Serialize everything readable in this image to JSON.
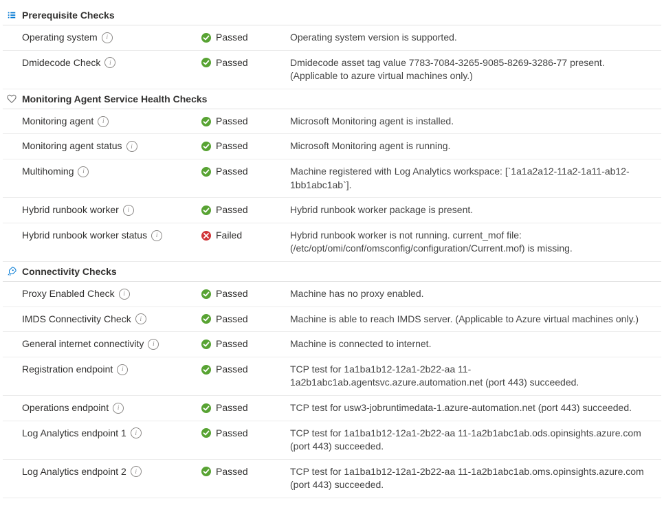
{
  "colors": {
    "pass": "#58a333",
    "fail": "#d13438",
    "section_icon": "#0078d4",
    "border": "#e1e1e1",
    "text": "#323130"
  },
  "status_labels": {
    "passed": "Passed",
    "failed": "Failed"
  },
  "sections": [
    {
      "icon": "list",
      "title": "Prerequisite Checks",
      "rows": [
        {
          "name": "Operating system",
          "status": "passed",
          "desc": "Operating system version is supported."
        },
        {
          "name": "Dmidecode Check",
          "status": "passed",
          "desc": "Dmidecode asset tag value 7783-7084-3265-9085-8269-3286-77 present. (Applicable to azure virtual machines only.)"
        }
      ]
    },
    {
      "icon": "heart",
      "title": "Monitoring Agent Service Health Checks",
      "rows": [
        {
          "name": "Monitoring agent",
          "status": "passed",
          "desc": "Microsoft Monitoring agent is installed."
        },
        {
          "name": "Monitoring agent status",
          "status": "passed",
          "desc": "Microsoft Monitoring agent is running."
        },
        {
          "name": "Multihoming",
          "status": "passed",
          "desc": "Machine registered with Log Analytics workspace: [`1a1a2a12-11a2-1a11-ab12-1bb1abc1ab`]."
        },
        {
          "name": "Hybrid runbook worker",
          "status": "passed",
          "desc": "Hybrid runbook worker package is present."
        },
        {
          "name": "Hybrid runbook worker status",
          "status": "failed",
          "desc": "Hybrid runbook worker is not running. current_mof file: (/etc/opt/omi/conf/omsconfig/configuration/Current.mof) is missing."
        }
      ]
    },
    {
      "icon": "rocket",
      "title": "Connectivity Checks",
      "rows": [
        {
          "name": "Proxy Enabled Check",
          "status": "passed",
          "desc": "Machine has no proxy enabled."
        },
        {
          "name": "IMDS Connectivity Check",
          "status": "passed",
          "desc": "Machine is able to reach IMDS server. (Applicable to Azure virtual machines only.)"
        },
        {
          "name": "General internet connectivity",
          "status": "passed",
          "desc": "Machine is connected to internet."
        },
        {
          "name": "Registration endpoint",
          "status": "passed",
          "desc": "TCP test for 1a1ba1b12-12a1-2b22-aa 11-1a2b1abc1ab.agentsvc.azure.automation.net (port 443) succeeded."
        },
        {
          "name": "Operations endpoint",
          "status": "passed",
          "desc": "TCP test for usw3-jobruntimedata-1.azure-automation.net (port 443) succeeded."
        },
        {
          "name": "Log Analytics endpoint 1",
          "status": "passed",
          "desc": "TCP test for 1a1ba1b12-12a1-2b22-aa 11-1a2b1abc1ab.ods.opinsights.azure.com (port 443) succeeded."
        },
        {
          "name": "Log Analytics endpoint 2",
          "status": "passed",
          "desc": "TCP test for 1a1ba1b12-12a1-2b22-aa 11-1a2b1abc1ab.oms.opinsights.azure.com (port 443) succeeded."
        }
      ]
    }
  ]
}
